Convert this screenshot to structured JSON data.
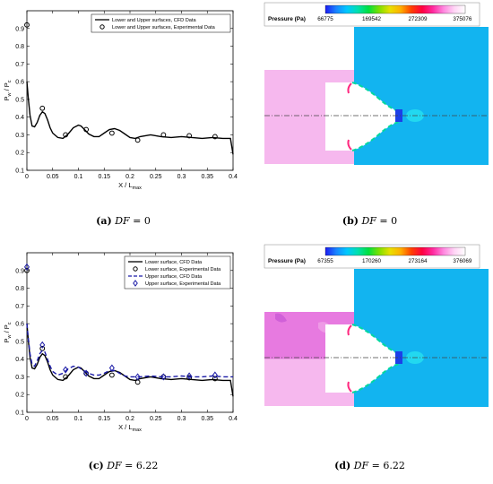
{
  "captions": [
    {
      "letter": "(a)",
      "label": "DF",
      "value": "= 0"
    },
    {
      "letter": "(b)",
      "label": "DF",
      "value": "= 0"
    },
    {
      "letter": "(c)",
      "label": "DF",
      "value": "= 6.22"
    },
    {
      "letter": "(d)",
      "label": "DF",
      "value": "= 6.22"
    }
  ],
  "chart_data": [
    {
      "type": "line",
      "xlabel": "X / L",
      "xlabel_sub": "max",
      "ylabel": "P",
      "ylabel_sub1": "w",
      "ylabel_mid": " / P",
      "ylabel_sub2": "c",
      "xlim": [
        0,
        0.4
      ],
      "ylim": [
        0.1,
        1.0
      ],
      "xticks": [
        "0",
        "0.05",
        "0.1",
        "0.15",
        "0.2",
        "0.25",
        "0.3",
        "0.35",
        "0.4"
      ],
      "yticks": [
        "0.1",
        "0.2",
        "0.3",
        "0.4",
        "0.5",
        "0.6",
        "0.7",
        "0.8",
        "0.9"
      ],
      "legend_position": "top-right",
      "series": [
        {
          "name": "Lower and Upper surfaces, CFD Data",
          "style": "solid",
          "color": "#000000",
          "x": [
            0,
            0.003,
            0.006,
            0.01,
            0.015,
            0.02,
            0.025,
            0.03,
            0.035,
            0.04,
            0.045,
            0.05,
            0.06,
            0.07,
            0.08,
            0.09,
            0.1,
            0.105,
            0.11,
            0.12,
            0.13,
            0.14,
            0.15,
            0.16,
            0.17,
            0.18,
            0.19,
            0.2,
            0.21,
            0.22,
            0.24,
            0.26,
            0.28,
            0.3,
            0.32,
            0.34,
            0.36,
            0.38,
            0.395,
            0.4
          ],
          "y": [
            0.6,
            0.5,
            0.41,
            0.35,
            0.345,
            0.37,
            0.41,
            0.43,
            0.42,
            0.385,
            0.34,
            0.31,
            0.285,
            0.28,
            0.305,
            0.34,
            0.355,
            0.35,
            0.335,
            0.305,
            0.29,
            0.29,
            0.31,
            0.33,
            0.335,
            0.325,
            0.305,
            0.285,
            0.28,
            0.29,
            0.3,
            0.29,
            0.285,
            0.29,
            0.285,
            0.28,
            0.285,
            0.28,
            0.28,
            0.19
          ]
        },
        {
          "name": "Lower and Upper surfaces, Experimental Data",
          "style": "circle",
          "color": "#000000",
          "x": [
            0,
            0.03,
            0.075,
            0.115,
            0.165,
            0.215,
            0.265,
            0.315,
            0.365
          ],
          "y": [
            0.92,
            0.45,
            0.3,
            0.33,
            0.31,
            0.27,
            0.3,
            0.295,
            0.29
          ]
        }
      ]
    },
    {
      "type": "heatmap",
      "colorbar_title": "Pressure (Pa)",
      "colorbar_ticks": [
        "66775",
        "169542",
        "272309",
        "375076"
      ]
    },
    {
      "type": "line",
      "xlabel": "X / L",
      "xlabel_sub": "max",
      "ylabel": "P",
      "ylabel_sub1": "w",
      "ylabel_mid": " / P",
      "ylabel_sub2": "c",
      "xlim": [
        0,
        0.4
      ],
      "ylim": [
        0.1,
        1.0
      ],
      "xticks": [
        "0",
        "0.05",
        "0.1",
        "0.15",
        "0.2",
        "0.25",
        "0.3",
        "0.35",
        "0.4"
      ],
      "yticks": [
        "0.1",
        "0.2",
        "0.3",
        "0.4",
        "0.5",
        "0.6",
        "0.7",
        "0.8",
        "0.9"
      ],
      "legend_position": "top-right",
      "series": [
        {
          "name": "Lower surface, CFD Data",
          "style": "solid",
          "color": "#000000",
          "x": [
            0,
            0.003,
            0.006,
            0.01,
            0.015,
            0.02,
            0.025,
            0.03,
            0.035,
            0.04,
            0.045,
            0.05,
            0.06,
            0.07,
            0.08,
            0.09,
            0.1,
            0.105,
            0.11,
            0.12,
            0.13,
            0.14,
            0.15,
            0.16,
            0.17,
            0.18,
            0.19,
            0.2,
            0.21,
            0.22,
            0.24,
            0.26,
            0.28,
            0.3,
            0.32,
            0.34,
            0.36,
            0.38,
            0.395,
            0.4
          ],
          "y": [
            0.6,
            0.5,
            0.41,
            0.35,
            0.345,
            0.37,
            0.41,
            0.43,
            0.42,
            0.385,
            0.34,
            0.31,
            0.285,
            0.28,
            0.305,
            0.34,
            0.355,
            0.35,
            0.335,
            0.305,
            0.29,
            0.29,
            0.31,
            0.33,
            0.335,
            0.325,
            0.305,
            0.285,
            0.28,
            0.29,
            0.3,
            0.29,
            0.285,
            0.29,
            0.285,
            0.28,
            0.285,
            0.28,
            0.28,
            0.19
          ]
        },
        {
          "name": "Lower surface, Experimental Data",
          "style": "circle",
          "color": "#000000",
          "x": [
            0,
            0.03,
            0.075,
            0.115,
            0.165,
            0.215,
            0.265,
            0.315,
            0.365
          ],
          "y": [
            0.9,
            0.46,
            0.3,
            0.32,
            0.31,
            0.27,
            0.3,
            0.295,
            0.29
          ]
        },
        {
          "name": "Upper surface, CFD Data",
          "style": "dashed",
          "color": "#1a1aa6",
          "x": [
            0,
            0.003,
            0.006,
            0.01,
            0.015,
            0.02,
            0.025,
            0.03,
            0.035,
            0.04,
            0.045,
            0.05,
            0.06,
            0.07,
            0.08,
            0.09,
            0.1,
            0.11,
            0.12,
            0.13,
            0.14,
            0.15,
            0.16,
            0.17,
            0.18,
            0.19,
            0.2,
            0.22,
            0.24,
            0.26,
            0.28,
            0.3,
            0.32,
            0.34,
            0.36,
            0.38,
            0.4
          ],
          "y": [
            0.6,
            0.51,
            0.43,
            0.37,
            0.36,
            0.39,
            0.43,
            0.45,
            0.44,
            0.4,
            0.36,
            0.33,
            0.31,
            0.32,
            0.345,
            0.36,
            0.355,
            0.335,
            0.32,
            0.31,
            0.31,
            0.32,
            0.335,
            0.335,
            0.32,
            0.305,
            0.3,
            0.3,
            0.305,
            0.3,
            0.3,
            0.305,
            0.3,
            0.3,
            0.305,
            0.3,
            0.3
          ]
        },
        {
          "name": "Upper surface, Experimental Data",
          "style": "diamond",
          "color": "#1a1aa6",
          "x": [
            0,
            0.03,
            0.075,
            0.115,
            0.165,
            0.215,
            0.265,
            0.315,
            0.365
          ],
          "y": [
            0.92,
            0.48,
            0.34,
            0.32,
            0.35,
            0.3,
            0.3,
            0.305,
            0.31
          ]
        }
      ]
    },
    {
      "type": "heatmap",
      "colorbar_title": "Pressure (Pa)",
      "colorbar_ticks": [
        "67355",
        "170260",
        "273164",
        "376069"
      ]
    }
  ]
}
